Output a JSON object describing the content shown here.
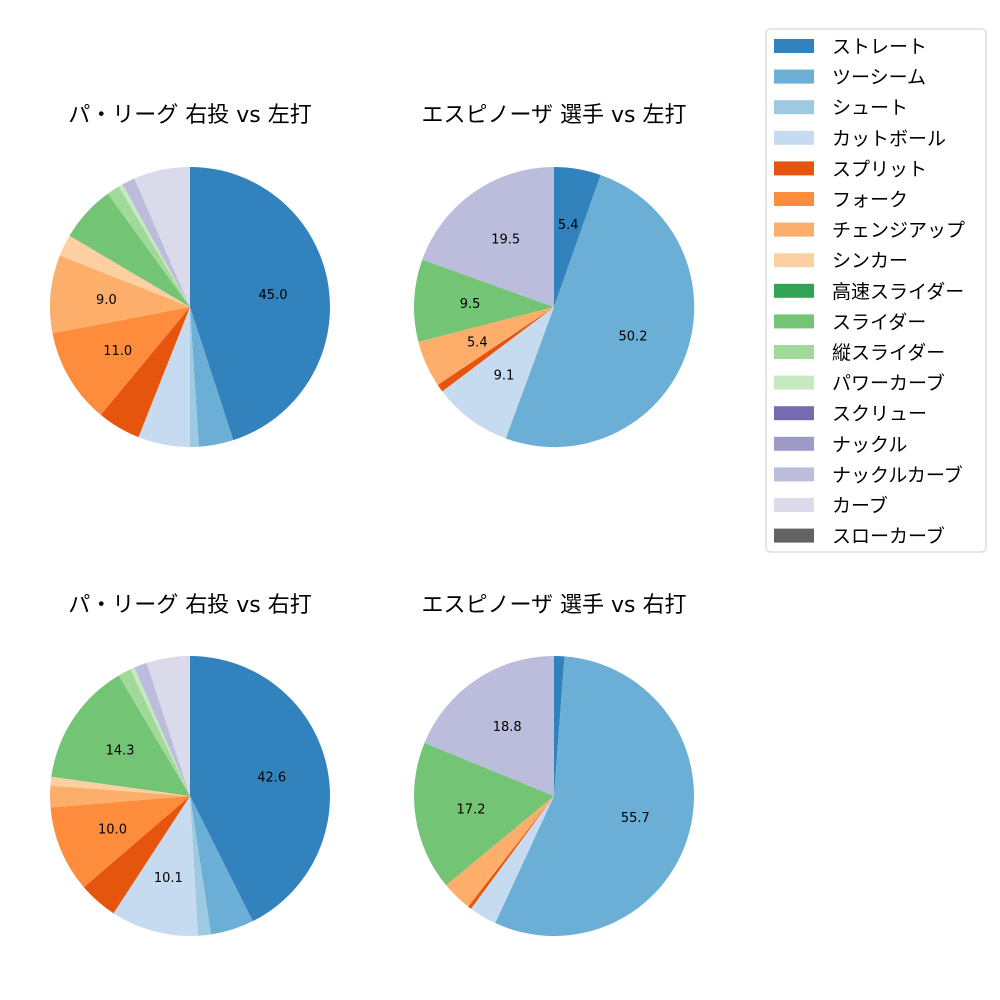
{
  "legend": {
    "placement": "top-right",
    "items": [
      {
        "name": "ストレート",
        "color": "#3182bd"
      },
      {
        "name": "ツーシーム",
        "color": "#6baed6"
      },
      {
        "name": "シュート",
        "color": "#9ecae1"
      },
      {
        "name": "カットボール",
        "color": "#c6dbef"
      },
      {
        "name": "スプリット",
        "color": "#e6550d"
      },
      {
        "name": "フォーク",
        "color": "#fd8d3c"
      },
      {
        "name": "チェンジアップ",
        "color": "#fdae6b"
      },
      {
        "name": "シンカー",
        "color": "#fdd0a2"
      },
      {
        "name": "高速スライダー",
        "color": "#31a354"
      },
      {
        "name": "スライダー",
        "color": "#74c476"
      },
      {
        "name": "縦スライダー",
        "color": "#a1d99b"
      },
      {
        "name": "パワーカーブ",
        "color": "#c7e9c0"
      },
      {
        "name": "スクリュー",
        "color": "#756bb1"
      },
      {
        "name": "ナックル",
        "color": "#9e9ac8"
      },
      {
        "name": "ナックルカーブ",
        "color": "#bcbddc"
      },
      {
        "name": "カーブ",
        "color": "#dadaeb"
      },
      {
        "name": "スローカーブ",
        "color": "#636363"
      }
    ]
  },
  "chart_data": [
    {
      "type": "pie",
      "title": "パ・リーグ 右投 vs 左打",
      "slices": [
        {
          "name": "ストレート",
          "value": 45.0,
          "label": "45.0"
        },
        {
          "name": "ツーシーム",
          "value": 4.0,
          "label": ""
        },
        {
          "name": "シュート",
          "value": 1.0,
          "label": ""
        },
        {
          "name": "カットボール",
          "value": 6.0,
          "label": ""
        },
        {
          "name": "スプリット",
          "value": 5.0,
          "label": ""
        },
        {
          "name": "フォーク",
          "value": 11.0,
          "label": "11.0"
        },
        {
          "name": "チェンジアップ",
          "value": 9.0,
          "label": "9.0"
        },
        {
          "name": "シンカー",
          "value": 2.5,
          "label": ""
        },
        {
          "name": "スライダー",
          "value": 6.5,
          "label": ""
        },
        {
          "name": "縦スライダー",
          "value": 1.5,
          "label": ""
        },
        {
          "name": "パワーカーブ",
          "value": 0.5,
          "label": ""
        },
        {
          "name": "ナックルカーブ",
          "value": 1.5,
          "label": ""
        },
        {
          "name": "カーブ",
          "value": 6.5,
          "label": ""
        }
      ]
    },
    {
      "type": "pie",
      "title": "エスピノーザ 選手 vs 左打",
      "slices": [
        {
          "name": "ストレート",
          "value": 5.4,
          "label": "5.4"
        },
        {
          "name": "ツーシーム",
          "value": 50.2,
          "label": "50.2"
        },
        {
          "name": "カットボール",
          "value": 9.1,
          "label": "9.1"
        },
        {
          "name": "スプリット",
          "value": 0.9,
          "label": ""
        },
        {
          "name": "チェンジアップ",
          "value": 5.4,
          "label": "5.4"
        },
        {
          "name": "スライダー",
          "value": 9.5,
          "label": "9.5"
        },
        {
          "name": "ナックルカーブ",
          "value": 19.5,
          "label": "19.5"
        }
      ]
    },
    {
      "type": "pie",
      "title": "パ・リーグ 右投 vs 右打",
      "slices": [
        {
          "name": "ストレート",
          "value": 42.6,
          "label": "42.6"
        },
        {
          "name": "ツーシーム",
          "value": 5.0,
          "label": ""
        },
        {
          "name": "シュート",
          "value": 1.5,
          "label": ""
        },
        {
          "name": "カットボール",
          "value": 10.1,
          "label": "10.1"
        },
        {
          "name": "スプリット",
          "value": 4.5,
          "label": ""
        },
        {
          "name": "フォーク",
          "value": 10.0,
          "label": "10.0"
        },
        {
          "name": "チェンジアップ",
          "value": 2.5,
          "label": ""
        },
        {
          "name": "シンカー",
          "value": 1.0,
          "label": ""
        },
        {
          "name": "スライダー",
          "value": 14.3,
          "label": "14.3"
        },
        {
          "name": "縦スライダー",
          "value": 1.5,
          "label": ""
        },
        {
          "name": "パワーカーブ",
          "value": 0.5,
          "label": ""
        },
        {
          "name": "ナックルカーブ",
          "value": 1.5,
          "label": ""
        },
        {
          "name": "カーブ",
          "value": 5.0,
          "label": ""
        }
      ]
    },
    {
      "type": "pie",
      "title": "エスピノーザ 選手 vs 右打",
      "slices": [
        {
          "name": "ストレート",
          "value": 1.2,
          "label": ""
        },
        {
          "name": "ツーシーム",
          "value": 55.7,
          "label": "55.7"
        },
        {
          "name": "カットボール",
          "value": 3.2,
          "label": ""
        },
        {
          "name": "スプリット",
          "value": 0.4,
          "label": ""
        },
        {
          "name": "チェンジアップ",
          "value": 3.5,
          "label": ""
        },
        {
          "name": "スライダー",
          "value": 17.2,
          "label": "17.2"
        },
        {
          "name": "ナックルカーブ",
          "value": 18.8,
          "label": "18.8"
        }
      ]
    }
  ]
}
